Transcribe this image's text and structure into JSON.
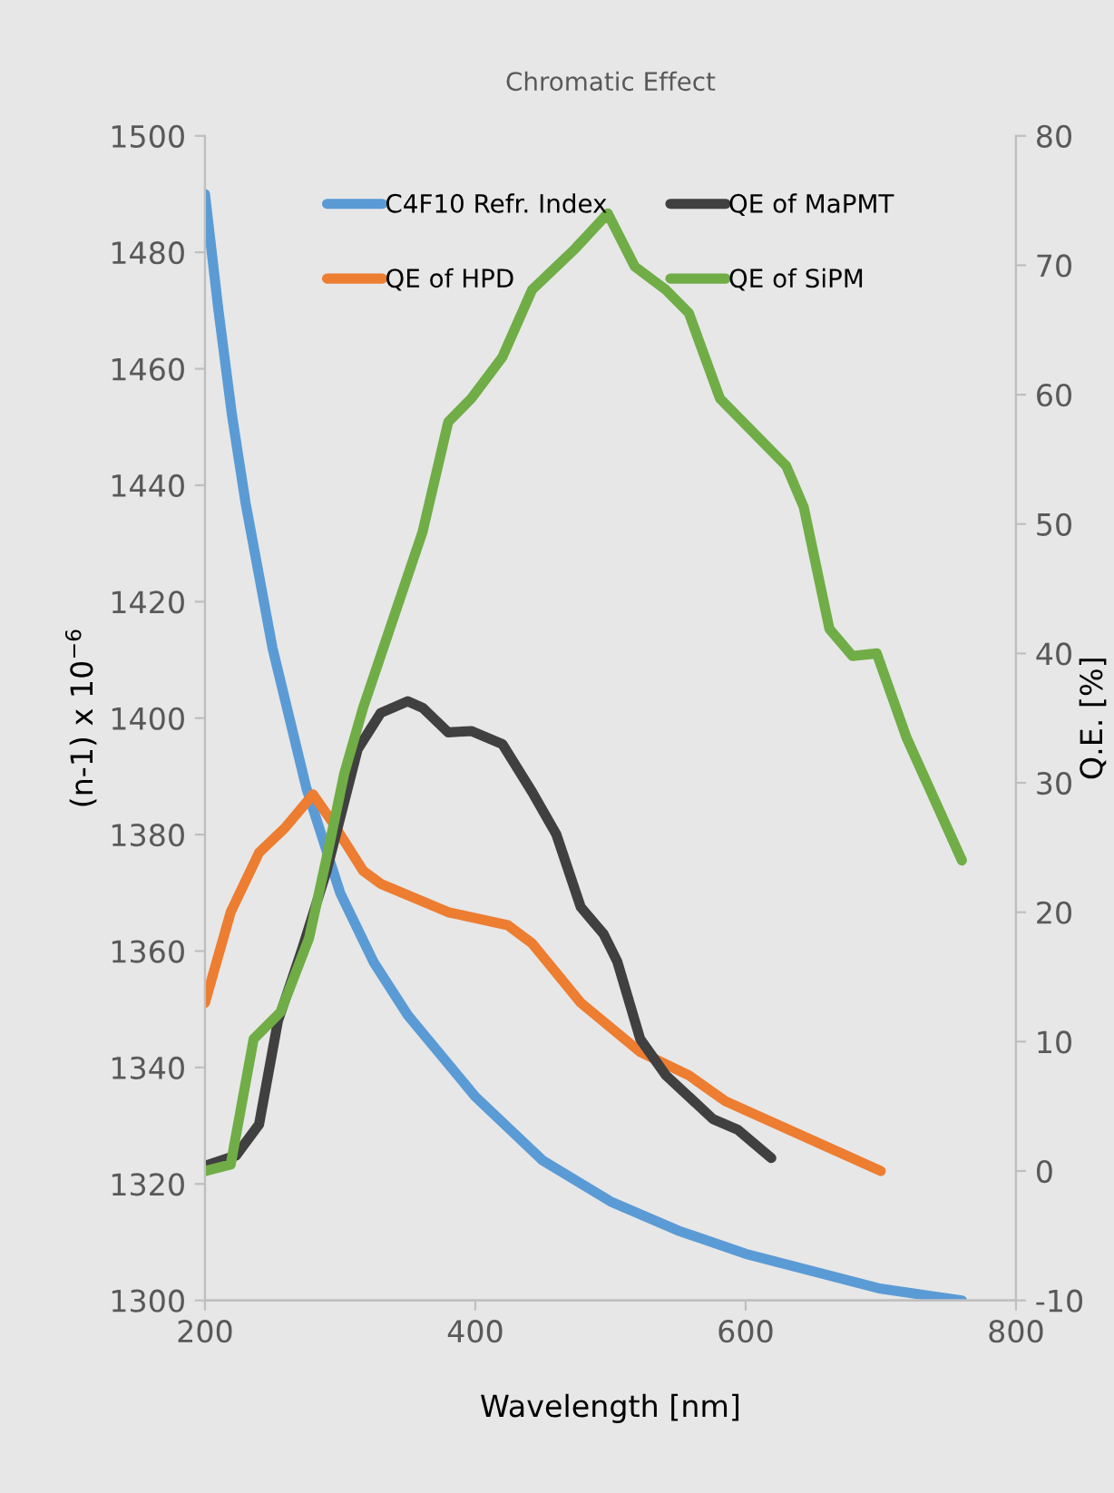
{
  "chart_data": {
    "type": "line",
    "title": "Chromatic Effect",
    "xlabel": "Wavelength [nm]",
    "ylabel": "(n-1) x 10$^{−6}$",
    "y2label": "Q.E. [%]",
    "xlim": [
      200,
      800
    ],
    "xticks": [
      200,
      400,
      600,
      800
    ],
    "ylim": [
      1300,
      1500
    ],
    "yticks": [
      1300,
      1320,
      1340,
      1360,
      1380,
      1400,
      1420,
      1440,
      1460,
      1480,
      1500
    ],
    "y2lim": [
      -10,
      80
    ],
    "y2ticks": [
      -10,
      0,
      10,
      20,
      30,
      40,
      50,
      60,
      70,
      80
    ],
    "legend": "top",
    "grid": false,
    "marker": "none",
    "line_style": "solid",
    "series": [
      {
        "name": "C4F10 Refr. Index",
        "color": "#5b9bd5",
        "x": [
          200,
          210,
          220,
          230,
          250,
          275,
          300,
          325,
          350,
          400,
          450,
          500,
          550,
          600,
          650,
          700,
          760
        ],
        "values": [
          1490,
          1470,
          1452,
          1437,
          1412,
          1388,
          1370,
          1358,
          1349,
          1335,
          1324,
          1317,
          1312,
          1308,
          1305,
          1302,
          1300
        ]
      },
      {
        "name": "QE of HPD",
        "color": "#ed7d31",
        "axis": "y2",
        "x": [
          200,
          219,
          240,
          259,
          280,
          294,
          317,
          330,
          380,
          424,
          442,
          478,
          522,
          558,
          585,
          700
        ],
        "values": [
          13,
          20,
          24.6,
          26.5,
          29.1,
          27,
          23.2,
          22.2,
          20,
          19,
          17.6,
          13,
          9.2,
          7.4,
          5.4,
          0
        ]
      },
      {
        "name": "QE of MaPMT",
        "color": "#404040",
        "axis": "y2",
        "x": [
          200,
          223,
          240,
          254,
          272,
          290,
          313,
          330,
          350,
          361,
          380,
          397,
          420,
          442,
          460,
          478,
          495,
          505,
          522,
          541,
          576,
          594,
          619
        ],
        "values": [
          0.4,
          1.2,
          3.6,
          11.6,
          17.2,
          23.2,
          32.6,
          35.4,
          36.3,
          35.8,
          33.9,
          34,
          33,
          29.3,
          26,
          20.4,
          18.3,
          16.2,
          10.2,
          7.4,
          4,
          3.2,
          1
        ]
      },
      {
        "name": "QE of SiPM",
        "color": "#70ad47",
        "axis": "y2",
        "x": [
          200,
          219,
          236,
          256,
          277,
          290,
          303,
          317,
          361,
          380,
          397,
          420,
          442,
          474,
          498,
          518,
          541,
          558,
          581,
          630,
          643,
          662,
          679,
          697,
          719,
          760
        ],
        "values": [
          0,
          0.5,
          10.2,
          12.3,
          18,
          24.2,
          30.7,
          35.8,
          49.4,
          57.9,
          59.7,
          62.9,
          68.1,
          71.3,
          74,
          69.9,
          68.1,
          66.3,
          59.7,
          54.5,
          51.3,
          41.9,
          39.8,
          40,
          33.5,
          24
        ]
      }
    ]
  }
}
